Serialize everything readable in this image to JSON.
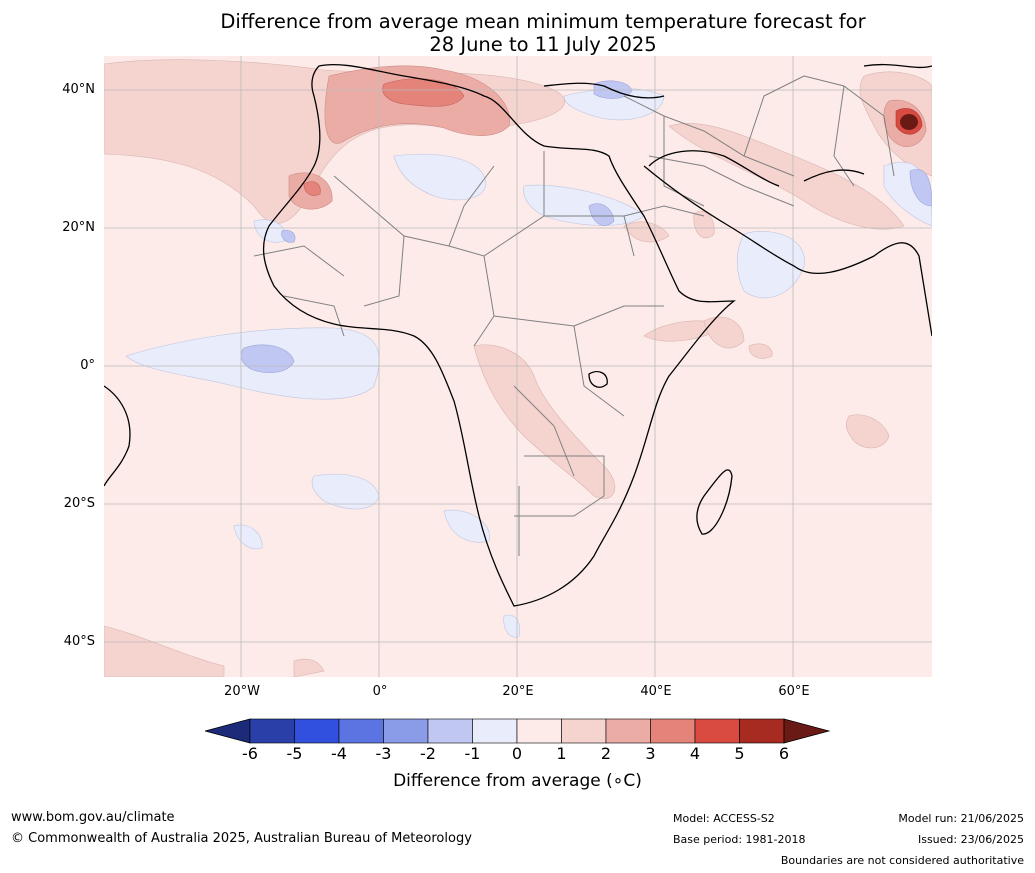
{
  "title": {
    "line1": "Difference from average mean minimum temperature forecast for",
    "line2": "28 June to 11 July 2025"
  },
  "map": {
    "lat_labels": [
      "40°N",
      "20°N",
      "0°",
      "20°S",
      "40°S"
    ],
    "lon_labels": [
      "20°W",
      "0°",
      "20°E",
      "40°E",
      "60°E"
    ],
    "colors": {
      "ocean_land_neutral": "#fcebe9",
      "warm_1_2": "#f5d3cf",
      "warm_2_3": "#ecaca6",
      "warm_3_4": "#e4837a",
      "warm_4_5": "#d94a41",
      "warm_5_6": "#a82b22",
      "cool_0_1": "#e9ecfb",
      "cool_1_2": "#c0c7f2",
      "coast": "#000000",
      "border": "#808080",
      "grid": "#bbbbbb"
    }
  },
  "colorbar": {
    "ticks": [
      "-6",
      "-5",
      "-4",
      "-3",
      "-2",
      "-1",
      "0",
      "1",
      "2",
      "3",
      "4",
      "5",
      "6"
    ],
    "colors": [
      "#1c2a7a",
      "#2a3fa8",
      "#3150dd",
      "#5c74e2",
      "#8a9be8",
      "#c0c7f2",
      "#e9ecfb",
      "#fcebe9",
      "#f5d3cf",
      "#ecaca6",
      "#e4837a",
      "#d94a41",
      "#a82b22",
      "#6a1a14"
    ],
    "label": "Difference from average (∘C)"
  },
  "footer": {
    "url": "www.bom.gov.au/climate",
    "copyright": "© Commonwealth of Australia 2025, Australian Bureau of Meteorology",
    "model": "Model: ACCESS-S2",
    "base_period": "Base period: 1981-2018",
    "model_run": "Model run: 21/06/2025",
    "issued": "Issued: 23/06/2025",
    "disclaimer": "Boundaries are not considered authoritative"
  }
}
